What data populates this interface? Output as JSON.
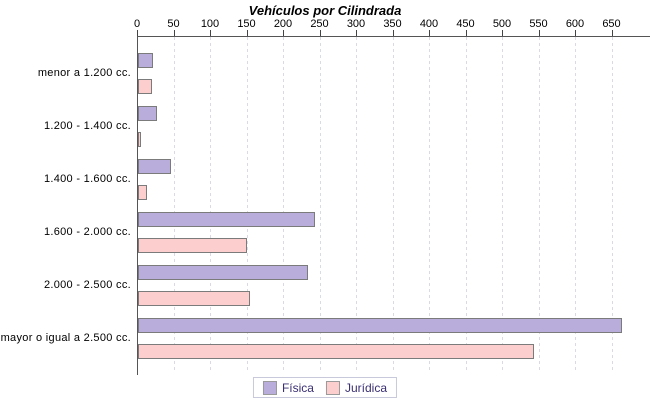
{
  "chart_data": {
    "type": "bar",
    "orientation": "horizontal",
    "title": "Vehículos por Cilindrada",
    "categories": [
      "menor a 1.200 cc.",
      "1.200 - 1.400 cc.",
      "1.400 - 1.600 cc.",
      "1.600 - 2.000 cc.",
      "2.000 - 2.500 cc.",
      "mayor o igual a 2.500 cc."
    ],
    "series": [
      {
        "name": "Física",
        "color": "#b8addb",
        "values": [
          18,
          23,
          42,
          240,
          230,
          660
        ]
      },
      {
        "name": "Jurídica",
        "color": "#fdcece",
        "values": [
          16,
          1,
          9,
          147,
          150,
          540
        ]
      }
    ],
    "value_axis": {
      "position": "top",
      "min": 0,
      "max": 700,
      "tick_step": 50,
      "ticks": [
        0,
        50,
        100,
        150,
        200,
        250,
        300,
        350,
        400,
        450,
        500,
        550,
        600,
        650
      ]
    },
    "grid": "vertical-dashed",
    "legend_position": "bottom"
  },
  "colors": {
    "bar_border": "#7b7b7b",
    "axis_line": "#555555",
    "gridline": "#dadae4",
    "legend_border": "#c9c9dc",
    "legend_text": "#3a2f73",
    "background": "#ffffff",
    "text": "#000000"
  }
}
